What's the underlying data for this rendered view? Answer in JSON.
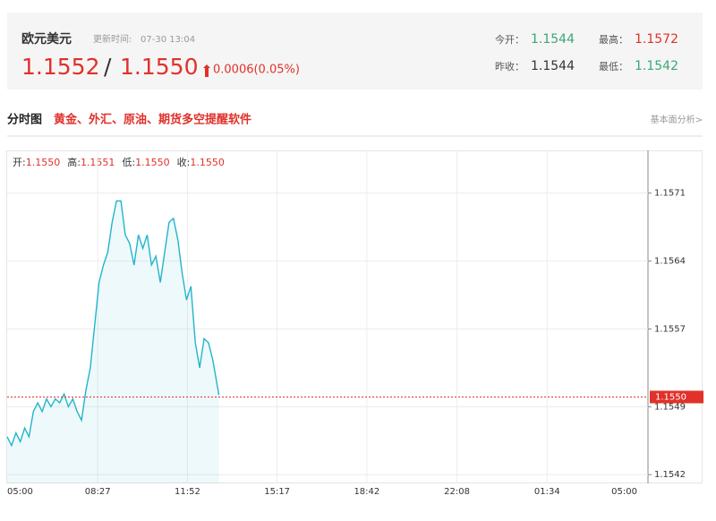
{
  "header": {
    "title": "欧元美元",
    "update_label": "更新时间:",
    "update_time": "07-30 13:04",
    "bid": "1.1552",
    "separator": "/",
    "ask": "1.1550",
    "change": "0.0006(0.05%)",
    "stats": [
      {
        "label": "今开：",
        "value": "1.1544"
      },
      {
        "label": "最高：",
        "value": "1.1572"
      },
      {
        "label": "昨收：",
        "value": "1.1544"
      },
      {
        "label": "最低：",
        "value": "1.1542"
      }
    ]
  },
  "tabs": {
    "title": "分时图",
    "promo": "黄金、外汇、原油、期货多空提醒软件",
    "link": "基本面分析>"
  },
  "chart_data": {
    "type": "line",
    "ohlc": [
      {
        "label": "开:",
        "value": "1.1550"
      },
      {
        "label": "高:",
        "value": "1.1551"
      },
      {
        "label": "低:",
        "value": "1.1550"
      },
      {
        "label": "收:",
        "value": "1.1550"
      }
    ],
    "x": [
      "05:00",
      "05:10",
      "05:20",
      "05:30",
      "05:40",
      "05:50",
      "06:00",
      "06:10",
      "06:20",
      "06:30",
      "06:40",
      "06:50",
      "07:00",
      "07:10",
      "07:20",
      "07:30",
      "07:40",
      "07:50",
      "08:00",
      "08:10",
      "08:20",
      "08:30",
      "08:40",
      "08:50",
      "09:00",
      "09:10",
      "09:20",
      "09:30",
      "09:40",
      "09:50",
      "10:00",
      "10:10",
      "10:20",
      "10:30",
      "10:40",
      "10:50",
      "11:00",
      "11:10",
      "11:20",
      "11:30",
      "11:40",
      "11:50",
      "12:00",
      "12:10",
      "12:20",
      "12:30",
      "12:40",
      "12:50",
      "13:00",
      "13:04"
    ],
    "series": [
      {
        "color": "#21b5cc",
        "values": [
          1.15459,
          1.1545,
          1.15463,
          1.15454,
          1.15468,
          1.15459,
          1.15485,
          1.15494,
          1.15485,
          1.15498,
          1.1549,
          1.15498,
          1.15494,
          1.15503,
          1.1549,
          1.15498,
          1.15485,
          1.15476,
          1.15507,
          1.1553,
          1.15574,
          1.15618,
          1.15636,
          1.15649,
          1.1568,
          1.15702,
          1.15702,
          1.15667,
          1.15658,
          1.15636,
          1.15667,
          1.15653,
          1.15667,
          1.15636,
          1.15645,
          1.15618,
          1.15649,
          1.1568,
          1.15684,
          1.15662,
          1.15627,
          1.156,
          1.15614,
          1.15556,
          1.1553,
          1.1556,
          1.15556,
          1.15538,
          1.15512,
          1.15502
        ]
      }
    ],
    "xlim": [
      "05:00",
      "05:00"
    ],
    "xticks": [
      "05:00",
      "08:27",
      "11:52",
      "15:17",
      "18:42",
      "22:08",
      "01:34",
      "05:00"
    ],
    "ylim": [
      1.15411,
      1.15754
    ],
    "yticks": [
      1.1542,
      1.1549,
      1.1557,
      1.1564,
      1.1571
    ],
    "last_price": {
      "value": 1.155,
      "label": "1.1550",
      "color": "#e0312a"
    },
    "grid": true
  }
}
